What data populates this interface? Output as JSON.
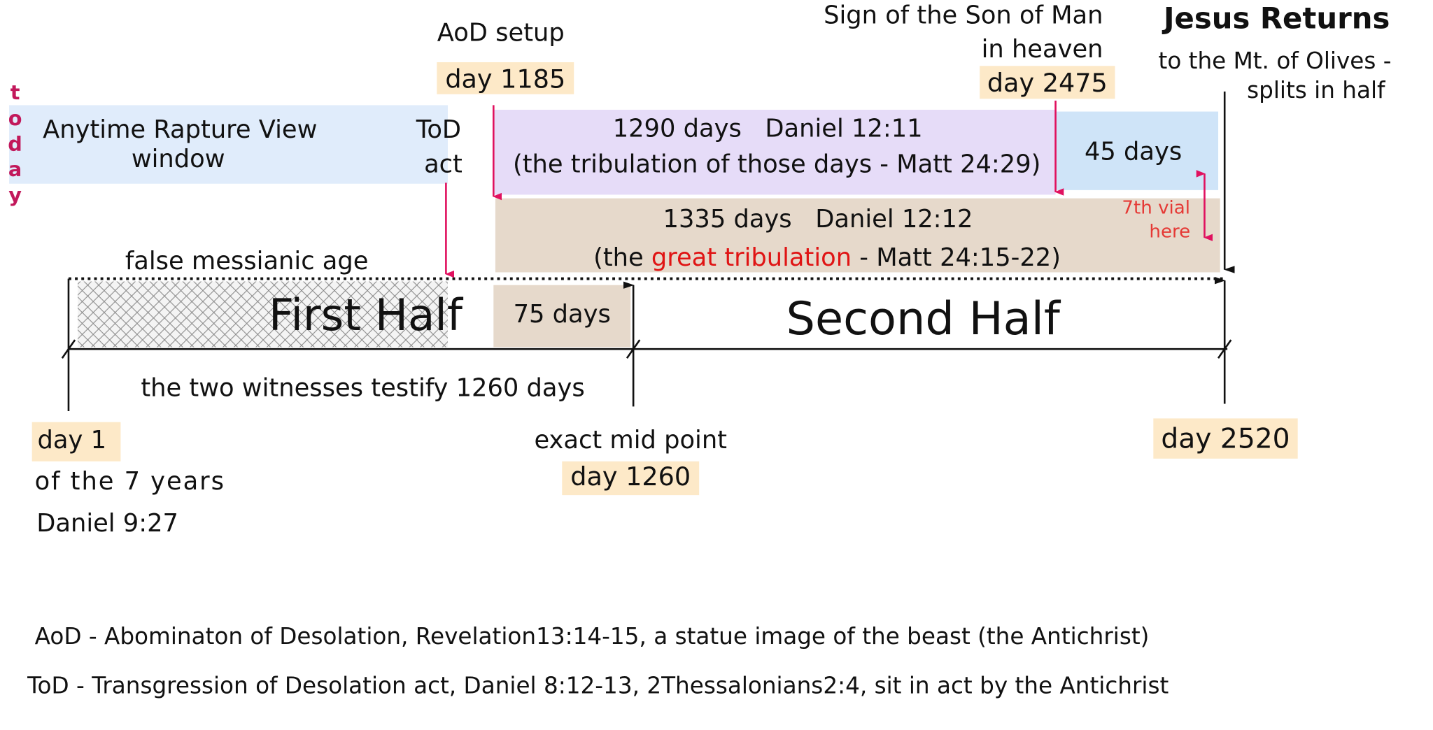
{
  "today": "today",
  "aod": {
    "label": "AoD setup",
    "day": "day 1185"
  },
  "sign": {
    "line1": "Sign of the Son of Man",
    "line2": "in heaven",
    "day": "day 2475"
  },
  "returns": {
    "title": "Jesus Returns",
    "line1": "to the Mt. of Olives -",
    "line2": "splits in half"
  },
  "rapture": {
    "line1": "Anytime Rapture View",
    "line2": "window"
  },
  "tod": {
    "line1": "ToD",
    "line2": "act"
  },
  "p1290": {
    "line1": "1290 days   Daniel 12:11",
    "line2": "(the tribulation of those days - Matt 24:29)"
  },
  "p45": "45 days",
  "p1335": {
    "line1": "1335 days   Daniel 12:12",
    "line2": [
      "(the",
      "great tribulation",
      "- Matt 24:15-22)"
    ]
  },
  "vial": {
    "line1": "7th vial",
    "line2": "here"
  },
  "false_age": "false messianic age",
  "first_half": "First Half",
  "p75": "75 days",
  "second_half": "Second Half",
  "witnesses": "the two witnesses testify 1260 days",
  "day1": {
    "day": "day 1",
    "line1": "of the 7 years",
    "line2": "Daniel 9:27"
  },
  "mid": {
    "label": "exact mid point",
    "day": "day 1260"
  },
  "day2520": "day 2520",
  "notes": [
    "AoD - Abominaton of Desolation, Revelation13:14-15, a statue image of the beast (the Antichrist)",
    "ToD - Transgression of Desolation act, Daniel 8:12-13, 2Thessalonians2:4, sit in act by the Antichrist"
  ]
}
